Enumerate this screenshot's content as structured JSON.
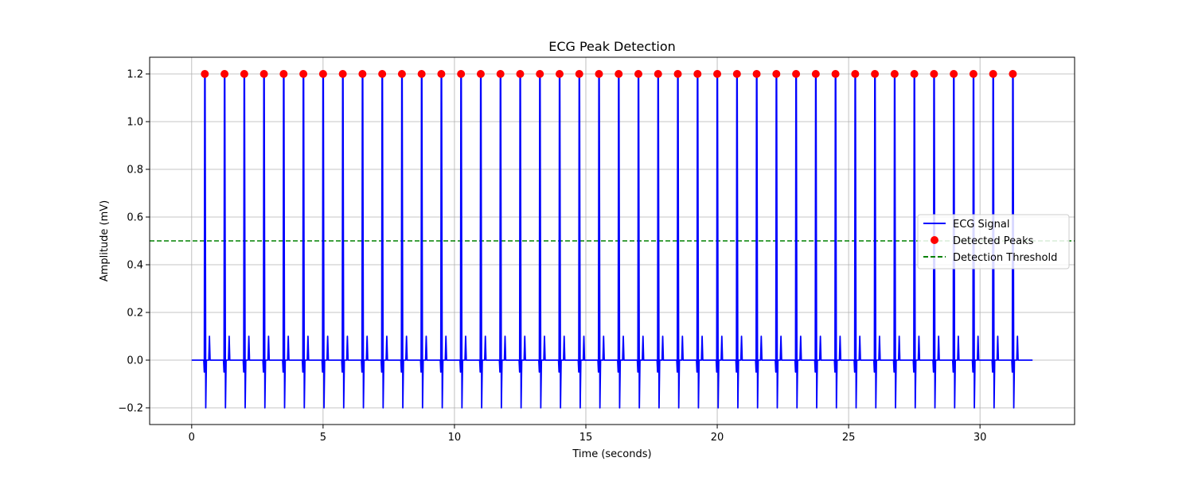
{
  "chart_data": {
    "type": "line",
    "title": "ECG Peak Detection",
    "xlabel": "Time (seconds)",
    "ylabel": "Amplitude (mV)",
    "xlim": [
      -1.6,
      33.6
    ],
    "ylim": [
      -0.27,
      1.27
    ],
    "xticks": [
      0,
      5,
      10,
      15,
      20,
      25,
      30
    ],
    "xtick_labels": [
      "0",
      "5",
      "10",
      "15",
      "20",
      "25",
      "30"
    ],
    "yticks": [
      -0.2,
      0.0,
      0.2,
      0.4,
      0.6,
      0.8,
      1.0,
      1.2
    ],
    "ytick_labels": [
      "−0.2",
      "0.0",
      "0.2",
      "0.4",
      "0.6",
      "0.8",
      "1.0",
      "1.2"
    ],
    "grid": true,
    "legend_position": "right",
    "signal_range": [
      0,
      32
    ],
    "series": [
      {
        "name": "ECG Signal",
        "kind": "line",
        "color": "#0000ff",
        "r_peak_amplitude": 1.2,
        "q_amplitude": -0.2,
        "t_amplitude": 0.1,
        "baseline": 0.0,
        "beat_times": [
          0.5,
          1.25,
          2.0,
          2.75,
          3.5,
          4.25,
          5.0,
          5.75,
          6.5,
          7.25,
          8.0,
          8.75,
          9.5,
          10.25,
          11.0,
          11.75,
          12.5,
          13.25,
          14.0,
          14.75,
          15.5,
          16.25,
          17.0,
          17.75,
          18.5,
          19.25,
          20.0,
          20.75,
          21.5,
          22.25,
          23.0,
          23.75,
          24.5,
          25.25,
          26.0,
          26.75,
          27.5,
          28.25,
          29.0,
          29.75,
          30.5,
          31.25
        ]
      },
      {
        "name": "Detected Peaks",
        "kind": "scatter",
        "color": "#ff0000",
        "x": [
          0.5,
          1.25,
          2.0,
          2.75,
          3.5,
          4.25,
          5.0,
          5.75,
          6.5,
          7.25,
          8.0,
          8.75,
          9.5,
          10.25,
          11.0,
          11.75,
          12.5,
          13.25,
          14.0,
          14.75,
          15.5,
          16.25,
          17.0,
          17.75,
          18.5,
          19.25,
          20.0,
          20.75,
          21.5,
          22.25,
          23.0,
          23.75,
          24.5,
          25.25,
          26.0,
          26.75,
          27.5,
          28.25,
          29.0,
          29.75,
          30.5,
          31.25
        ],
        "y": 1.2
      },
      {
        "name": "Detection Threshold",
        "kind": "hline",
        "color": "#008000",
        "y": 0.5
      }
    ]
  }
}
